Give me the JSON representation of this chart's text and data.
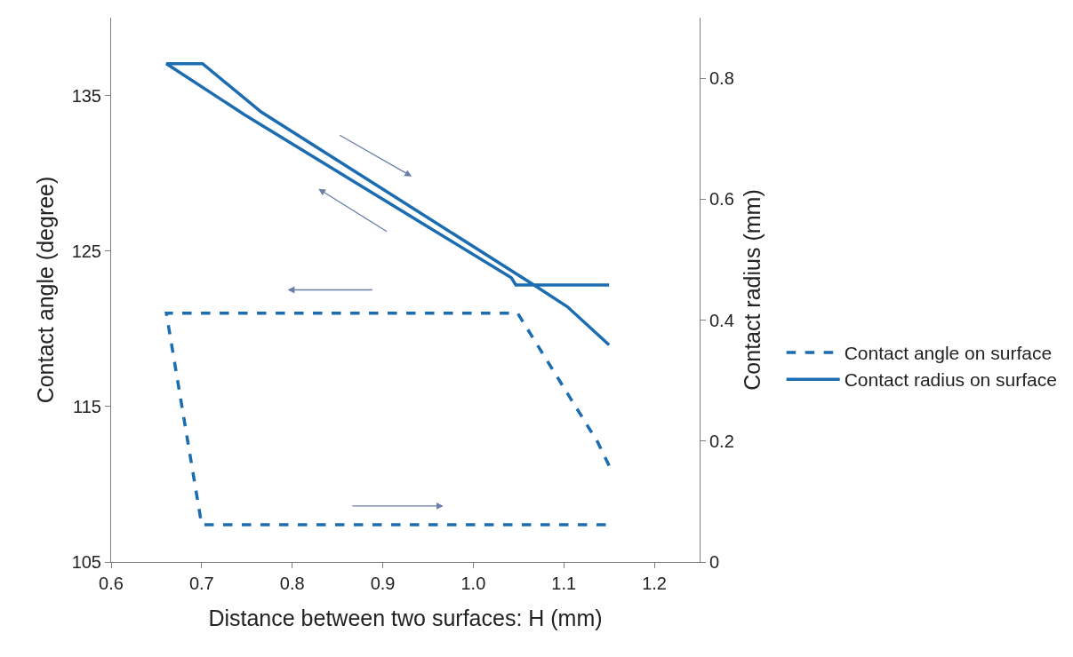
{
  "chart_data": {
    "type": "line",
    "xlabel": "Distance between two surfaces: H (mm)",
    "ylabel": "Contact angle (degree)",
    "y2label": "Contact radius (mm)",
    "xlim": [
      0.6,
      1.25
    ],
    "xticks": [
      {
        "value": 0.6,
        "label": "0.6"
      },
      {
        "value": 0.7,
        "label": "0.7"
      },
      {
        "value": 0.8,
        "label": "0.8"
      },
      {
        "value": 0.9,
        "label": "0.9"
      },
      {
        "value": 1.0,
        "label": "1.0"
      },
      {
        "value": 1.1,
        "label": "1.1"
      },
      {
        "value": 1.2,
        "label": "1.2"
      }
    ],
    "ylim": [
      105,
      140
    ],
    "yticks": [
      105,
      115,
      125,
      135
    ],
    "y2lim": [
      0,
      0.9
    ],
    "y2ticks": [
      0,
      0.2,
      0.4,
      0.6,
      0.8
    ],
    "grid": false,
    "legend": "right",
    "marker": "none",
    "series": [
      {
        "name": "Contact angle on surface",
        "color": "#1b6cb0",
        "line_style": "dashed",
        "x": [
          1.15,
          1.1375,
          1.049,
          0.661,
          0.7,
          1.15
        ],
        "values": [
          111.2,
          112.7,
          121.0,
          121.0,
          107.4,
          107.4
        ]
      },
      {
        "name": "Contact radius on surface",
        "color": "#1b6cb0",
        "line_style": "solid",
        "axis": "y2",
        "x": [
          1.15,
          1.047,
          1.042,
          0.747,
          0.661,
          0.701,
          0.766,
          1.067,
          1.104,
          1.15
        ],
        "values": [
          0.458,
          0.458,
          0.47,
          0.74,
          0.824,
          0.824,
          0.744,
          0.458,
          0.422,
          0.359
        ]
      }
    ]
  }
}
